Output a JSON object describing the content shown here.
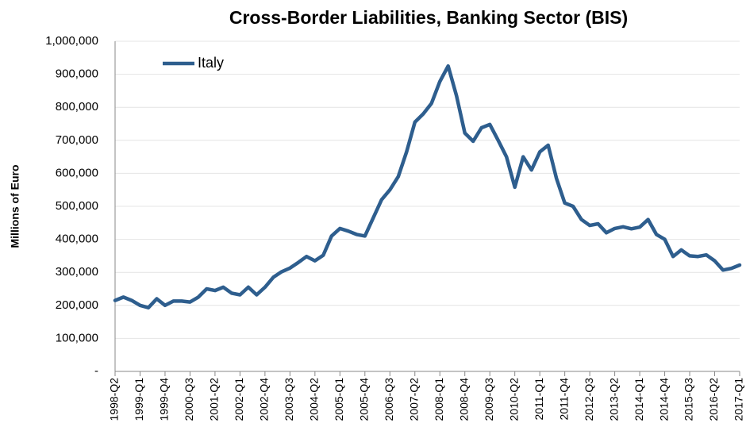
{
  "chart_data": {
    "type": "line",
    "title": "Cross-Border Liabilities, Banking Sector (BIS)",
    "y_label": "Millions of Euro",
    "categories": [
      "1998-Q2",
      null,
      null,
      "1999-Q1",
      null,
      null,
      "1999-Q4",
      null,
      null,
      "2000-Q3",
      null,
      null,
      "2001-Q2",
      null,
      null,
      "2002-Q1",
      null,
      null,
      "2002-Q4",
      null,
      null,
      "2003-Q3",
      null,
      null,
      "2004-Q2",
      null,
      null,
      "2005-Q1",
      null,
      null,
      "2005-Q4",
      null,
      null,
      "2006-Q3",
      null,
      null,
      "2007-Q2",
      null,
      null,
      "2008-Q1",
      null,
      null,
      "2008-Q4",
      null,
      null,
      "2009-Q3",
      null,
      null,
      "2010-Q2",
      null,
      null,
      "2011-Q1",
      null,
      null,
      "2011-Q4",
      null,
      null,
      "2012-Q3",
      null,
      null,
      "2013-Q2",
      null,
      null,
      "2014-Q1",
      null,
      null,
      "2014-Q4",
      null,
      null,
      "2015-Q3",
      null,
      null,
      "2016-Q2",
      null,
      null,
      "2017-Q1"
    ],
    "series": [
      {
        "name": "Italy",
        "color": "#2e5e8e",
        "values": [
          215000,
          225000,
          215000,
          200000,
          193000,
          220000,
          200000,
          213000,
          213000,
          210000,
          225000,
          250000,
          245000,
          255000,
          237000,
          232000,
          255000,
          232000,
          255000,
          285000,
          302000,
          313000,
          330000,
          348000,
          335000,
          352000,
          410000,
          433000,
          425000,
          415000,
          410000,
          465000,
          520000,
          550000,
          590000,
          665000,
          755000,
          780000,
          812000,
          878000,
          925000,
          835000,
          722000,
          697000,
          738000,
          748000,
          700000,
          650000,
          558000,
          650000,
          610000,
          665000,
          685000,
          585000,
          510000,
          500000,
          460000,
          442000,
          447000,
          420000,
          433000,
          438000,
          432000,
          437000,
          460000,
          415000,
          400000,
          348000,
          368000,
          350000,
          348000,
          353000,
          335000,
          307000,
          312000,
          322000
        ]
      }
    ],
    "ylim": [
      0,
      1000000
    ],
    "yticks": [
      {
        "value": 0,
        "label": "-"
      },
      {
        "value": 100000,
        "label": "100,000"
      },
      {
        "value": 200000,
        "label": "200,000"
      },
      {
        "value": 300000,
        "label": "300,000"
      },
      {
        "value": 400000,
        "label": "400,000"
      },
      {
        "value": 500000,
        "label": "500,000"
      },
      {
        "value": 600000,
        "label": "600,000"
      },
      {
        "value": 700000,
        "label": "700,000"
      },
      {
        "value": 800000,
        "label": "800,000"
      },
      {
        "value": 900000,
        "label": "900,000"
      },
      {
        "value": 1000000,
        "label": "1,000,000"
      }
    ],
    "grid": true,
    "legend": "upper left"
  }
}
